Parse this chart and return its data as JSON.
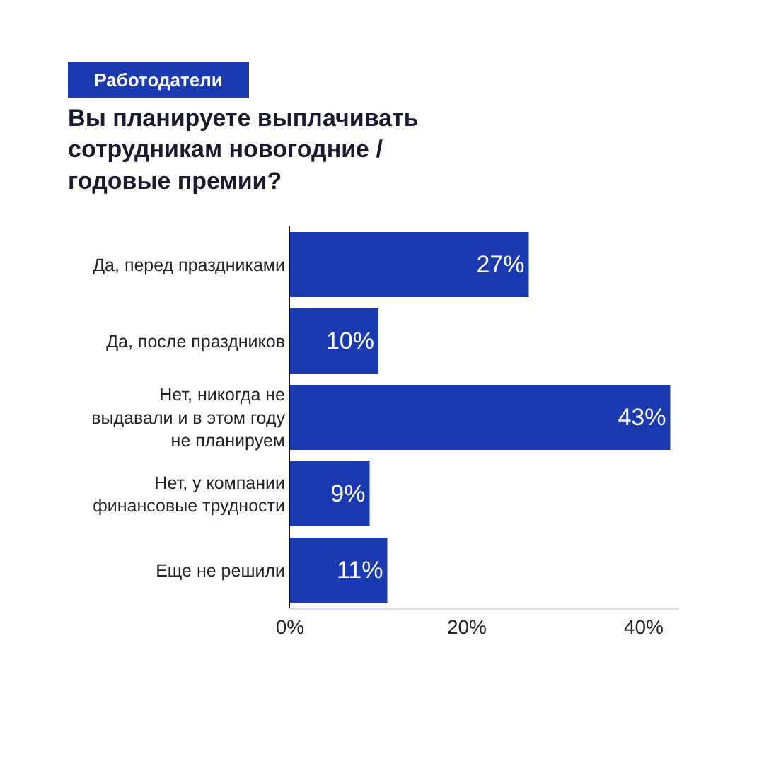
{
  "chart_data": {
    "type": "bar",
    "orientation": "horizontal",
    "subtitle": "Работодатели",
    "title": "Вы планируете выплачивать сотрудникам новогодние / годовые премии?",
    "categories": [
      "Да, перед праздниками",
      "Да, после праздников",
      "Нет, никогда не выдавали и в этом году не планируем",
      "Нет, у компании финансовые трудности",
      "Еще не решили"
    ],
    "values": [
      27,
      10,
      43,
      9,
      11
    ],
    "value_labels": [
      "27%",
      "10%",
      "43%",
      "9%",
      "11%"
    ],
    "color": "#1b3ab0",
    "xlim": [
      0,
      44
    ],
    "xticks": [
      {
        "value": 0,
        "label": "0%"
      },
      {
        "value": 20,
        "label": "20%"
      },
      {
        "value": 40,
        "label": "40%"
      }
    ],
    "grid": false,
    "legend": false
  }
}
